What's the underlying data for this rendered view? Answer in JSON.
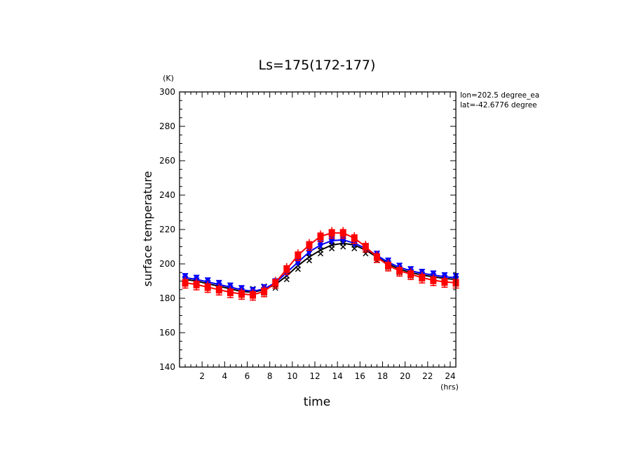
{
  "chart_data": {
    "type": "line",
    "title": "Ls=175(172-177)",
    "xlabel": "time",
    "ylabel": "surface temperature",
    "x_unit": "(hrs)",
    "y_unit": "(K)",
    "xlim": [
      0,
      24.5
    ],
    "ylim": [
      140,
      300
    ],
    "xticks": [
      2,
      4,
      6,
      8,
      10,
      12,
      14,
      16,
      18,
      20,
      22,
      24
    ],
    "yticks": [
      140,
      160,
      180,
      200,
      220,
      240,
      260,
      280,
      300
    ],
    "annotations": [
      "lon=202.5 degree_ea",
      "lat=-42.6776 degree"
    ],
    "grid": false,
    "x": [
      0.5,
      1.5,
      2.5,
      3.5,
      4.5,
      5.5,
      6.5,
      7.5,
      8.5,
      9.5,
      10.5,
      11.5,
      12.5,
      13.5,
      14.5,
      15.5,
      16.5,
      17.5,
      18.5,
      19.5,
      20.5,
      21.5,
      22.5,
      23.5,
      24.5
    ],
    "series": [
      {
        "color": "#000000",
        "marker": "x",
        "values": [
          191,
          190,
          188.5,
          187,
          185.5,
          184,
          183.5,
          185,
          188,
          193,
          199,
          204,
          208,
          211,
          212,
          211,
          208,
          204,
          200,
          197,
          195,
          193.5,
          192.5,
          191.5,
          191
        ]
      },
      {
        "color": "#0000ff",
        "marker": "v",
        "values": [
          192,
          191,
          189.5,
          188,
          186.5,
          185,
          184,
          185.5,
          189,
          195,
          201,
          207,
          211,
          213.5,
          214,
          212,
          209,
          205,
          201,
          198,
          196,
          194.5,
          193.5,
          192.5,
          192
        ]
      },
      {
        "color": "#ff0000",
        "marker": "square",
        "values": [
          189,
          188,
          186.5,
          185,
          183.5,
          182.5,
          182,
          184,
          189,
          197,
          205,
          211,
          216,
          218,
          218,
          215,
          210,
          204,
          199,
          196,
          194,
          192,
          190.5,
          189.5,
          189
        ]
      }
    ]
  }
}
